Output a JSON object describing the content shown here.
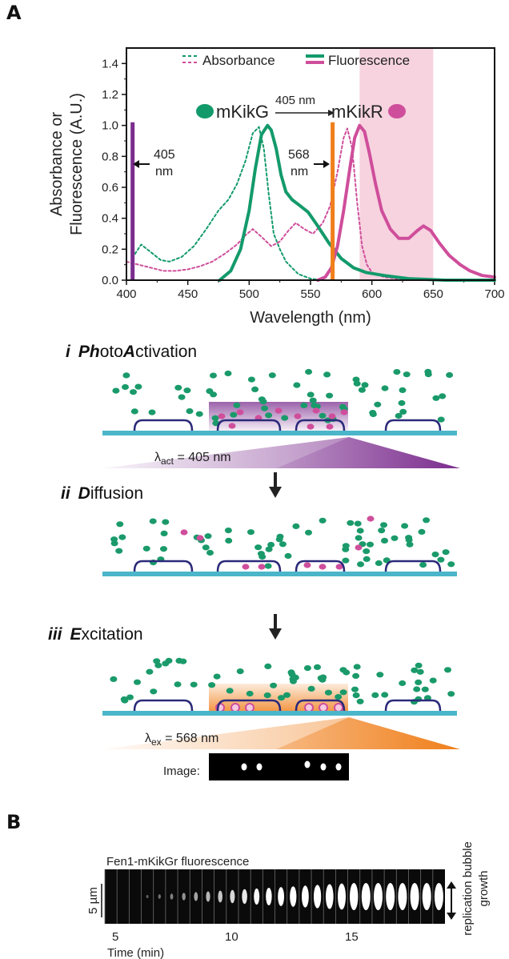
{
  "panels": {
    "a": "A",
    "b": "B"
  },
  "chart_data": {
    "type": "line",
    "xlabel": "Wavelength (nm)",
    "ylabel_line1": "Absorbance or",
    "ylabel_line2": "Fluorescence (A.U.)",
    "xlim": [
      400,
      700
    ],
    "ylim": [
      0,
      1.5
    ],
    "x_ticks": [
      "400",
      "450",
      "500",
      "550",
      "600",
      "650",
      "700"
    ],
    "y_ticks": [
      "0.0",
      "0.2",
      "0.4",
      "0.6",
      "0.8",
      "1.0",
      "1.2",
      "1.4"
    ],
    "legend": {
      "absorbance": "Absorbance",
      "fluorescence": "Fluorescence"
    },
    "conversion": {
      "from": "mKikG",
      "arrow_label": "405 nm",
      "to": "mKikR"
    },
    "lines": [
      {
        "label_value": "405",
        "label_unit": "nm",
        "x": 405,
        "color": "#7b2d8e"
      },
      {
        "label_value": "568",
        "label_unit": "nm",
        "x": 568,
        "color": "#f07f1b"
      }
    ],
    "shaded_band": {
      "x": [
        590,
        650
      ],
      "color": "#f6d3df"
    },
    "series": [
      {
        "name": "mKikG Absorbance",
        "color": "#139a6b",
        "dash": true,
        "x": [
          407,
          412,
          420,
          428,
          435,
          445,
          455,
          465,
          475,
          483,
          490,
          497,
          503,
          508,
          512,
          516,
          520,
          525,
          530,
          540,
          550,
          560,
          570
        ],
        "y": [
          0.17,
          0.23,
          0.18,
          0.13,
          0.12,
          0.15,
          0.22,
          0.33,
          0.45,
          0.52,
          0.62,
          0.77,
          0.95,
          0.99,
          0.85,
          0.55,
          0.3,
          0.2,
          0.12,
          0.04,
          0.01,
          0.0,
          0.0
        ]
      },
      {
        "name": "mKikR Absorbance",
        "color": "#cf4e9b",
        "dash": true,
        "x": [
          400,
          410,
          420,
          430,
          440,
          450,
          460,
          470,
          480,
          490,
          497,
          503,
          510,
          518,
          525,
          532,
          538,
          545,
          552,
          560,
          566,
          572,
          577,
          580,
          584,
          588,
          592,
          596,
          600,
          610,
          620,
          700
        ],
        "y": [
          0.12,
          0.1,
          0.08,
          0.06,
          0.06,
          0.07,
          0.09,
          0.12,
          0.17,
          0.23,
          0.29,
          0.33,
          0.28,
          0.22,
          0.25,
          0.32,
          0.37,
          0.33,
          0.3,
          0.37,
          0.48,
          0.7,
          0.92,
          0.98,
          0.85,
          0.5,
          0.22,
          0.1,
          0.05,
          0.02,
          0.01,
          0.0
        ]
      },
      {
        "name": "mKikG Fluorescence",
        "color": "#139a6b",
        "dash": false,
        "x": [
          476,
          485,
          493,
          500,
          505,
          510,
          515,
          518,
          522,
          526,
          530,
          535,
          540,
          548,
          555,
          565,
          575,
          585,
          595,
          610,
          630,
          660,
          700
        ],
        "y": [
          0.0,
          0.06,
          0.2,
          0.45,
          0.72,
          0.94,
          1.0,
          0.97,
          0.85,
          0.68,
          0.57,
          0.52,
          0.49,
          0.44,
          0.36,
          0.24,
          0.14,
          0.08,
          0.05,
          0.03,
          0.01,
          0.0,
          0.0
        ]
      },
      {
        "name": "mKikR Fluorescence",
        "color": "#cf4e9b",
        "dash": false,
        "x": [
          556,
          562,
          567,
          572,
          577,
          582,
          586,
          590,
          594,
          598,
          603,
          608,
          615,
          622,
          630,
          637,
          642,
          648,
          655,
          663,
          672,
          680,
          690,
          700
        ],
        "y": [
          0.0,
          0.02,
          0.08,
          0.22,
          0.45,
          0.72,
          0.92,
          1.0,
          0.96,
          0.82,
          0.62,
          0.45,
          0.33,
          0.27,
          0.27,
          0.32,
          0.35,
          0.32,
          0.24,
          0.16,
          0.1,
          0.06,
          0.03,
          0.02
        ]
      }
    ]
  },
  "schematic": {
    "steps": [
      {
        "num": "i",
        "em1": "Ph",
        "mid": "oto",
        "em2": "A",
        "rest": "ctivation"
      },
      {
        "num": "ii",
        "em1": "D",
        "rest": "iffusion"
      },
      {
        "num": "iii",
        "em1": "E",
        "rest": "xcitation"
      }
    ],
    "lambda_act": {
      "symbol": "λ",
      "sub": "act",
      "value": " = 405 nm"
    },
    "lambda_ex": {
      "symbol": "λ",
      "sub": "ex",
      "value": " = 568 nm"
    },
    "image_label": "Image:",
    "colors": {
      "track": "#4bb6c9",
      "loop": "#2b2a7a",
      "green": "#1a9a6a",
      "magenta": "#cf4e9b",
      "purple": "#7b2d8e",
      "orange": "#f07f1b"
    }
  },
  "kymograph": {
    "title": "Fen1-mKikGr fluorescence",
    "scale_label": "5 µm",
    "x_ticks": [
      "5",
      "10",
      "15"
    ],
    "xlabel": "Time (min)",
    "side_label_1": "replication bubble",
    "side_label_2": "growth",
    "frame_count": 28
  }
}
